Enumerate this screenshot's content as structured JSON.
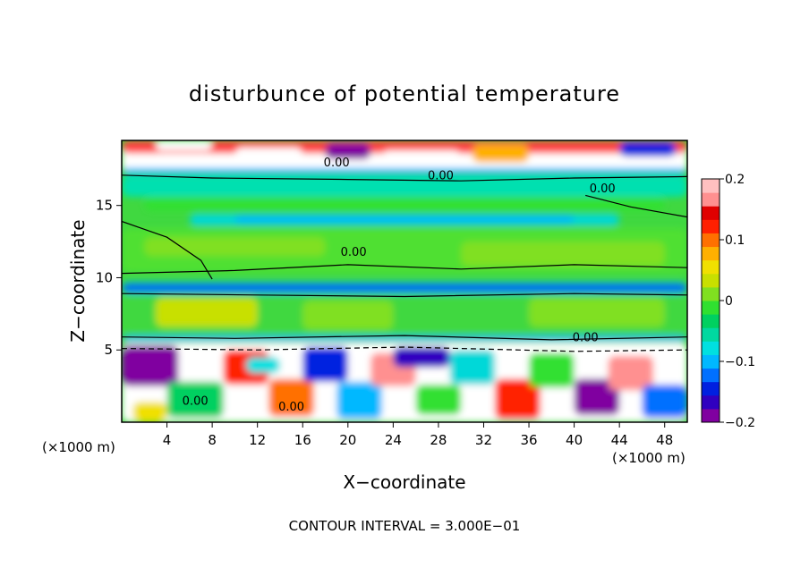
{
  "chart_data": {
    "type": "heatmap",
    "title": "disturbunce of potential temperature",
    "xlabel": "X−coordinate",
    "ylabel": "Z−coordinate",
    "x_unit_left": "(×1000 m)",
    "x_unit_right": "(×1000 m)",
    "x_ticks": [
      4,
      8,
      12,
      16,
      20,
      24,
      28,
      32,
      36,
      40,
      44,
      48
    ],
    "y_ticks": [
      5,
      10,
      15
    ],
    "xlim": [
      0,
      50
    ],
    "ylim": [
      0,
      19.5
    ],
    "colorbar": {
      "min": -0.2,
      "max": 0.2,
      "tick_values": [
        0.2,
        0.1,
        0,
        -0.1,
        -0.2
      ],
      "tick_labels": [
        "0.2",
        "0.1",
        "0",
        "−0.1",
        "−0.2"
      ]
    },
    "contour_labels": [
      {
        "text": "0.00",
        "x": 19.0,
        "y": 17.7
      },
      {
        "text": "0.00",
        "x": 28.2,
        "y": 16.8
      },
      {
        "text": "0.00",
        "x": 42.5,
        "y": 15.9
      },
      {
        "text": "0.00",
        "x": 20.5,
        "y": 11.5
      },
      {
        "text": "0.00",
        "x": 41.0,
        "y": 5.6
      },
      {
        "text": "0.00",
        "x": 6.5,
        "y": 1.2
      },
      {
        "text": "0.00",
        "x": 15.0,
        "y": 0.8
      }
    ],
    "footer": "CONTOUR INTERVAL = 3.000E−01",
    "colors": [
      "#8000a0",
      "#3000c0",
      "#0020e0",
      "#0070ff",
      "#00b8ff",
      "#00e0e0",
      "#00d8a0",
      "#00d060",
      "#30e030",
      "#80e020",
      "#c8e000",
      "#f0e000",
      "#ffb000",
      "#ff7000",
      "#ff2000",
      "#e00000",
      "#ff9090",
      "#ffc0c0"
    ]
  }
}
